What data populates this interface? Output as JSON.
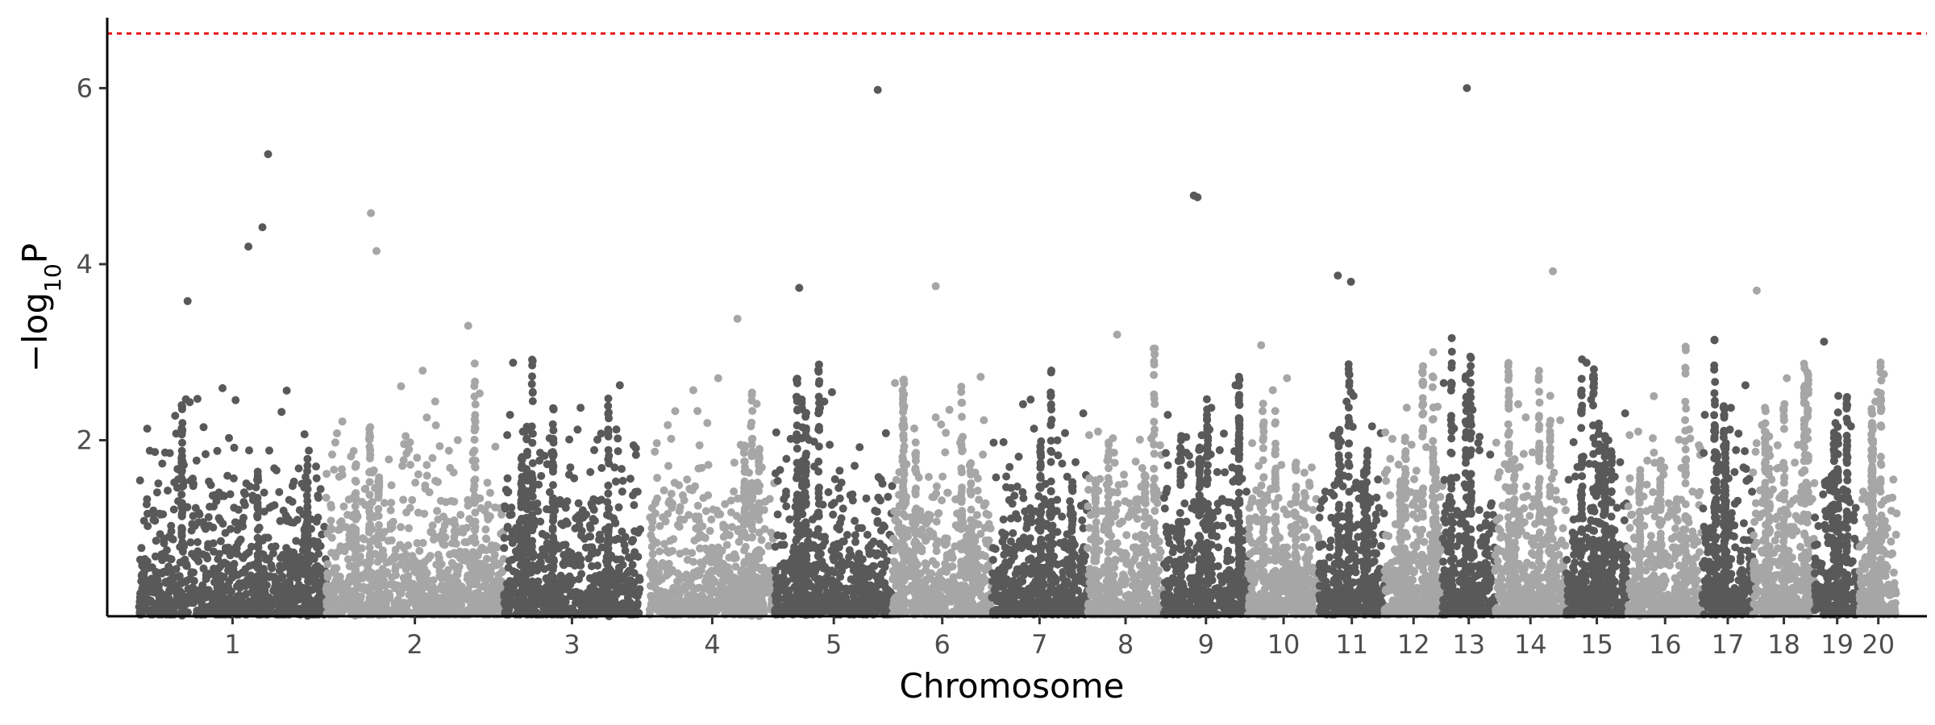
{
  "chart_data": {
    "type": "scatter",
    "subtype": "manhattan",
    "title": "",
    "xlabel": "Chromosome",
    "ylabel_prefix": "−log",
    "ylabel_subscript": "10",
    "ylabel_suffix": "P",
    "ylim": [
      0,
      6.8
    ],
    "yticks": [
      2,
      4,
      6
    ],
    "grid": false,
    "legend": "none",
    "threshold": {
      "value": 6.62,
      "color": "#e41a1c",
      "style": "dotted"
    },
    "colors": {
      "dark": "#595959",
      "light": "#a6a6a6"
    },
    "chromosomes": [
      {
        "label": "1",
        "start": 0,
        "end": 1000,
        "color": "dark"
      },
      {
        "label": "2",
        "start": 1000,
        "end": 1950,
        "color": "light"
      },
      {
        "label": "3",
        "start": 1950,
        "end": 2680,
        "color": "dark"
      },
      {
        "label": "4",
        "start": 2730,
        "end": 3400,
        "color": "light"
      },
      {
        "label": "5",
        "start": 3400,
        "end": 4030,
        "color": "dark"
      },
      {
        "label": "6",
        "start": 4030,
        "end": 4560,
        "color": "light"
      },
      {
        "label": "7",
        "start": 4560,
        "end": 5070,
        "color": "dark"
      },
      {
        "label": "8",
        "start": 5070,
        "end": 5480,
        "color": "light"
      },
      {
        "label": "9",
        "start": 5480,
        "end": 5930,
        "color": "dark"
      },
      {
        "label": "10",
        "start": 5930,
        "end": 6310,
        "color": "light"
      },
      {
        "label": "11",
        "start": 6310,
        "end": 6660,
        "color": "dark"
      },
      {
        "label": "12",
        "start": 6660,
        "end": 6970,
        "color": "light"
      },
      {
        "label": "13",
        "start": 6970,
        "end": 7250,
        "color": "dark"
      },
      {
        "label": "14",
        "start": 7250,
        "end": 7630,
        "color": "light"
      },
      {
        "label": "15",
        "start": 7630,
        "end": 7960,
        "color": "dark"
      },
      {
        "label": "16",
        "start": 7960,
        "end": 8360,
        "color": "light"
      },
      {
        "label": "17",
        "start": 8360,
        "end": 8630,
        "color": "dark"
      },
      {
        "label": "18",
        "start": 8630,
        "end": 8960,
        "color": "light"
      },
      {
        "label": "19",
        "start": 8960,
        "end": 9200,
        "color": "dark"
      },
      {
        "label": "20",
        "start": 9200,
        "end": 9400,
        "color": "light"
      }
    ],
    "xrange": [
      -170,
      9560
    ],
    "notable_points": [
      {
        "x": 260,
        "y": 3.58
      },
      {
        "x": 585,
        "y": 4.2
      },
      {
        "x": 660,
        "y": 4.42
      },
      {
        "x": 690,
        "y": 5.25
      },
      {
        "x": 1240,
        "y": 4.58
      },
      {
        "x": 1270,
        "y": 4.15
      },
      {
        "x": 1760,
        "y": 3.3
      },
      {
        "x": 2000,
        "y": 2.88
      },
      {
        "x": 3200,
        "y": 3.38
      },
      {
        "x": 3530,
        "y": 3.73
      },
      {
        "x": 3950,
        "y": 5.98
      },
      {
        "x": 4260,
        "y": 3.75
      },
      {
        "x": 4500,
        "y": 2.72
      },
      {
        "x": 5230,
        "y": 3.2
      },
      {
        "x": 5640,
        "y": 4.78
      },
      {
        "x": 5660,
        "y": 4.76
      },
      {
        "x": 6000,
        "y": 3.08
      },
      {
        "x": 6410,
        "y": 3.87
      },
      {
        "x": 6480,
        "y": 3.8
      },
      {
        "x": 6920,
        "y": 3.0
      },
      {
        "x": 7100,
        "y": 6.0
      },
      {
        "x": 7560,
        "y": 3.92
      },
      {
        "x": 7740,
        "y": 2.88
      },
      {
        "x": 8100,
        "y": 2.5
      },
      {
        "x": 8650,
        "y": 3.7
      },
      {
        "x": 9010,
        "y": 3.12
      },
      {
        "x": 9330,
        "y": 2.75
      }
    ]
  }
}
